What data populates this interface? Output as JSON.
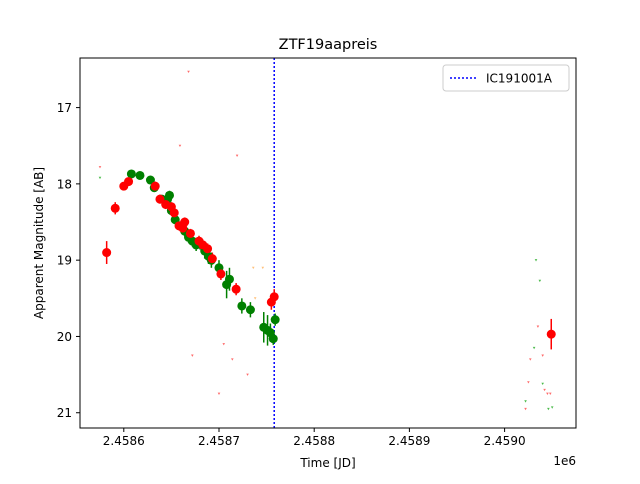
{
  "chart_data": {
    "type": "scatter",
    "title": "ZTF19aapreis",
    "xlabel": "Time [JD]",
    "ylabel": "Apparent Magnitude [AB]",
    "x_offset_label": "1e6",
    "xlim": [
      2458554,
      2459075
    ],
    "ylim": [
      21.2,
      16.35
    ],
    "y_inverted": true,
    "grid": false,
    "legend_position": "top-right",
    "x_ticks": [
      {
        "value": 2458600,
        "label": "2.4586"
      },
      {
        "value": 2458700,
        "label": "2.4587"
      },
      {
        "value": 2458800,
        "label": "2.4588"
      },
      {
        "value": 2458900,
        "label": "2.4589"
      },
      {
        "value": 2459000,
        "label": "2.4590"
      }
    ],
    "y_ticks": [
      {
        "value": 17,
        "label": "17"
      },
      {
        "value": 18,
        "label": "18"
      },
      {
        "value": 19,
        "label": "19"
      },
      {
        "value": 20,
        "label": "20"
      },
      {
        "value": 21,
        "label": "21"
      }
    ],
    "vline": {
      "x": 2458758,
      "label": "IC191001A",
      "color": "#0000ff"
    },
    "series": [
      {
        "color": "#008000",
        "points": [
          {
            "x": 2458608,
            "y": 17.87,
            "err": 0.05
          },
          {
            "x": 2458617,
            "y": 17.89,
            "err": 0.05
          },
          {
            "x": 2458628,
            "y": 17.95,
            "err": 0.05
          },
          {
            "x": 2458632,
            "y": 18.05,
            "err": 0.05
          },
          {
            "x": 2458640,
            "y": 18.2,
            "err": 0.05
          },
          {
            "x": 2458646,
            "y": 18.2,
            "err": 0.05
          },
          {
            "x": 2458648,
            "y": 18.15,
            "err": 0.06
          },
          {
            "x": 2458650,
            "y": 18.35,
            "err": 0.06
          },
          {
            "x": 2458654,
            "y": 18.47,
            "err": 0.06
          },
          {
            "x": 2458660,
            "y": 18.55,
            "err": 0.06
          },
          {
            "x": 2458664,
            "y": 18.62,
            "err": 0.07
          },
          {
            "x": 2458668,
            "y": 18.7,
            "err": 0.07
          },
          {
            "x": 2458672,
            "y": 18.75,
            "err": 0.07
          },
          {
            "x": 2458676,
            "y": 18.8,
            "err": 0.08
          },
          {
            "x": 2458680,
            "y": 18.78,
            "err": 0.08
          },
          {
            "x": 2458685,
            "y": 18.88,
            "err": 0.1
          },
          {
            "x": 2458689,
            "y": 18.95,
            "err": 0.1
          },
          {
            "x": 2458692,
            "y": 19.0,
            "err": 0.1
          },
          {
            "x": 2458700,
            "y": 19.1,
            "err": 0.1
          },
          {
            "x": 2458708,
            "y": 19.32,
            "err": 0.18
          },
          {
            "x": 2458711,
            "y": 19.25,
            "err": 0.15
          },
          {
            "x": 2458724,
            "y": 19.6,
            "err": 0.1
          },
          {
            "x": 2458733,
            "y": 19.65,
            "err": 0.1
          },
          {
            "x": 2458747,
            "y": 19.88,
            "err": 0.2
          },
          {
            "x": 2458751,
            "y": 19.92,
            "err": 0.2
          },
          {
            "x": 2458754,
            "y": 19.95,
            "err": 0.12
          },
          {
            "x": 2458757,
            "y": 20.03,
            "err": 0.08
          },
          {
            "x": 2458759,
            "y": 19.78,
            "err": 0.08
          }
        ]
      },
      {
        "color": "#ff0000",
        "points": [
          {
            "x": 2458582,
            "y": 18.9,
            "err": 0.15
          },
          {
            "x": 2458591,
            "y": 18.32,
            "err": 0.08
          },
          {
            "x": 2458600,
            "y": 18.03,
            "err": 0.05
          },
          {
            "x": 2458605,
            "y": 17.97,
            "err": 0.05
          },
          {
            "x": 2458633,
            "y": 18.03,
            "err": 0.06
          },
          {
            "x": 2458638,
            "y": 18.2,
            "err": 0.06
          },
          {
            "x": 2458644,
            "y": 18.27,
            "err": 0.06
          },
          {
            "x": 2458650,
            "y": 18.3,
            "err": 0.06
          },
          {
            "x": 2458653,
            "y": 18.38,
            "err": 0.06
          },
          {
            "x": 2458658,
            "y": 18.55,
            "err": 0.06
          },
          {
            "x": 2458662,
            "y": 18.58,
            "err": 0.06
          },
          {
            "x": 2458664,
            "y": 18.5,
            "err": 0.06
          },
          {
            "x": 2458670,
            "y": 18.65,
            "err": 0.06
          },
          {
            "x": 2458679,
            "y": 18.75,
            "err": 0.07
          },
          {
            "x": 2458683,
            "y": 18.8,
            "err": 0.07
          },
          {
            "x": 2458688,
            "y": 18.85,
            "err": 0.07
          },
          {
            "x": 2458693,
            "y": 18.98,
            "err": 0.08
          },
          {
            "x": 2458702,
            "y": 19.18,
            "err": 0.08
          },
          {
            "x": 2458718,
            "y": 19.38,
            "err": 0.08
          },
          {
            "x": 2458755,
            "y": 19.55,
            "err": 0.1
          },
          {
            "x": 2458758,
            "y": 19.48,
            "err": 0.1
          },
          {
            "x": 2459049,
            "y": 19.97,
            "err": 0.2
          }
        ]
      }
    ],
    "upper_limits": [
      {
        "x": 2458575,
        "y": 17.78,
        "color": "#ff6a6a"
      },
      {
        "x": 2458575,
        "y": 17.92,
        "color": "#4cbb4c"
      },
      {
        "x": 2458668,
        "y": 16.53,
        "color": "#ff6a6a"
      },
      {
        "x": 2458659,
        "y": 17.5,
        "color": "#ff6a6a"
      },
      {
        "x": 2458672,
        "y": 20.25,
        "color": "#ff6a6a"
      },
      {
        "x": 2458700,
        "y": 20.75,
        "color": "#ff6a6a"
      },
      {
        "x": 2458705,
        "y": 20.1,
        "color": "#ff6a6a"
      },
      {
        "x": 2458714,
        "y": 20.3,
        "color": "#ff6a6a"
      },
      {
        "x": 2458719,
        "y": 17.63,
        "color": "#ff6a6a"
      },
      {
        "x": 2458730,
        "y": 20.5,
        "color": "#ff6a6a"
      },
      {
        "x": 2458736,
        "y": 19.1,
        "color": "#ffc07a"
      },
      {
        "x": 2458746,
        "y": 19.1,
        "color": "#ffc07a"
      },
      {
        "x": 2458738,
        "y": 19.5,
        "color": "#ffc07a"
      },
      {
        "x": 2459022,
        "y": 20.85,
        "color": "#4cbb4c"
      },
      {
        "x": 2459022,
        "y": 20.95,
        "color": "#ff6a6a"
      },
      {
        "x": 2459027,
        "y": 20.3,
        "color": "#ff6a6a"
      },
      {
        "x": 2459031,
        "y": 20.15,
        "color": "#4cbb4c"
      },
      {
        "x": 2459033,
        "y": 19.0,
        "color": "#4cbb4c"
      },
      {
        "x": 2459035,
        "y": 19.87,
        "color": "#ff6a6a"
      },
      {
        "x": 2459037,
        "y": 19.27,
        "color": "#4cbb4c"
      },
      {
        "x": 2459040,
        "y": 20.25,
        "color": "#ff6a6a"
      },
      {
        "x": 2459040,
        "y": 20.62,
        "color": "#4cbb4c"
      },
      {
        "x": 2459042,
        "y": 20.7,
        "color": "#ff6a6a"
      },
      {
        "x": 2459045,
        "y": 20.75,
        "color": "#ff6a6a"
      },
      {
        "x": 2459048,
        "y": 20.75,
        "color": "#ff6a6a"
      },
      {
        "x": 2459046,
        "y": 20.95,
        "color": "#4cbb4c"
      },
      {
        "x": 2459050,
        "y": 20.93,
        "color": "#4cbb4c"
      },
      {
        "x": 2459025,
        "y": 20.6,
        "color": "#ff6a6a"
      }
    ]
  }
}
